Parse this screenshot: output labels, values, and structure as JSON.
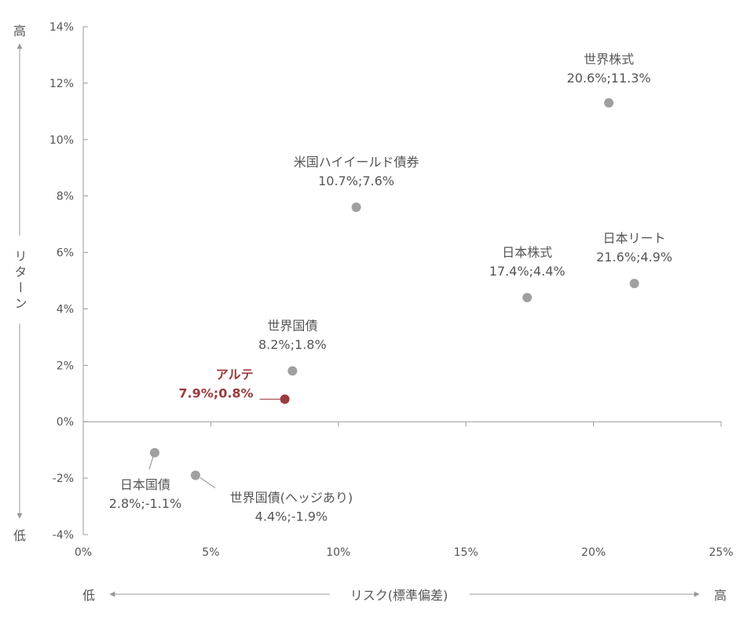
{
  "chart_data": {
    "type": "scatter",
    "xlabel": "リスク(標準偏差)",
    "ylabel": "リターン",
    "x_low": "低",
    "x_high": "高",
    "y_low": "低",
    "y_high": "高",
    "xlim": [
      0,
      25
    ],
    "ylim": [
      -4,
      14
    ],
    "x_ticks": [
      "0%",
      "5%",
      "10%",
      "15%",
      "20%",
      "25%"
    ],
    "y_ticks": [
      "-4%",
      "-2%",
      "0%",
      "2%",
      "4%",
      "6%",
      "8%",
      "10%",
      "12%",
      "14%"
    ],
    "grid": false,
    "colors": {
      "default": "#a0a0a0",
      "highlight": "#9b3a3e",
      "axis": "#999999",
      "text": "#555555"
    },
    "points": [
      {
        "name": "世界株式",
        "x": 20.6,
        "y": 11.3,
        "value_label": "20.6%;11.3%",
        "highlight": false
      },
      {
        "name": "米国ハイイールド債券",
        "x": 10.7,
        "y": 7.6,
        "value_label": "10.7%;7.6%",
        "highlight": false
      },
      {
        "name": "日本株式",
        "x": 17.4,
        "y": 4.4,
        "value_label": "17.4%;4.4%",
        "highlight": false
      },
      {
        "name": "日本リート",
        "x": 21.6,
        "y": 4.9,
        "value_label": "21.6%;4.9%",
        "highlight": false
      },
      {
        "name": "世界国債",
        "x": 8.2,
        "y": 1.8,
        "value_label": "8.2%;1.8%",
        "highlight": false
      },
      {
        "name": "アルテ",
        "x": 7.9,
        "y": 0.8,
        "value_label": "7.9%;0.8%",
        "highlight": true
      },
      {
        "name": "日本国債",
        "x": 2.8,
        "y": -1.1,
        "value_label": "2.8%;-1.1%",
        "highlight": false
      },
      {
        "name": "世界国債(ヘッジあり)",
        "x": 4.4,
        "y": -1.9,
        "value_label": "4.4%;-1.9%",
        "highlight": false
      }
    ]
  }
}
